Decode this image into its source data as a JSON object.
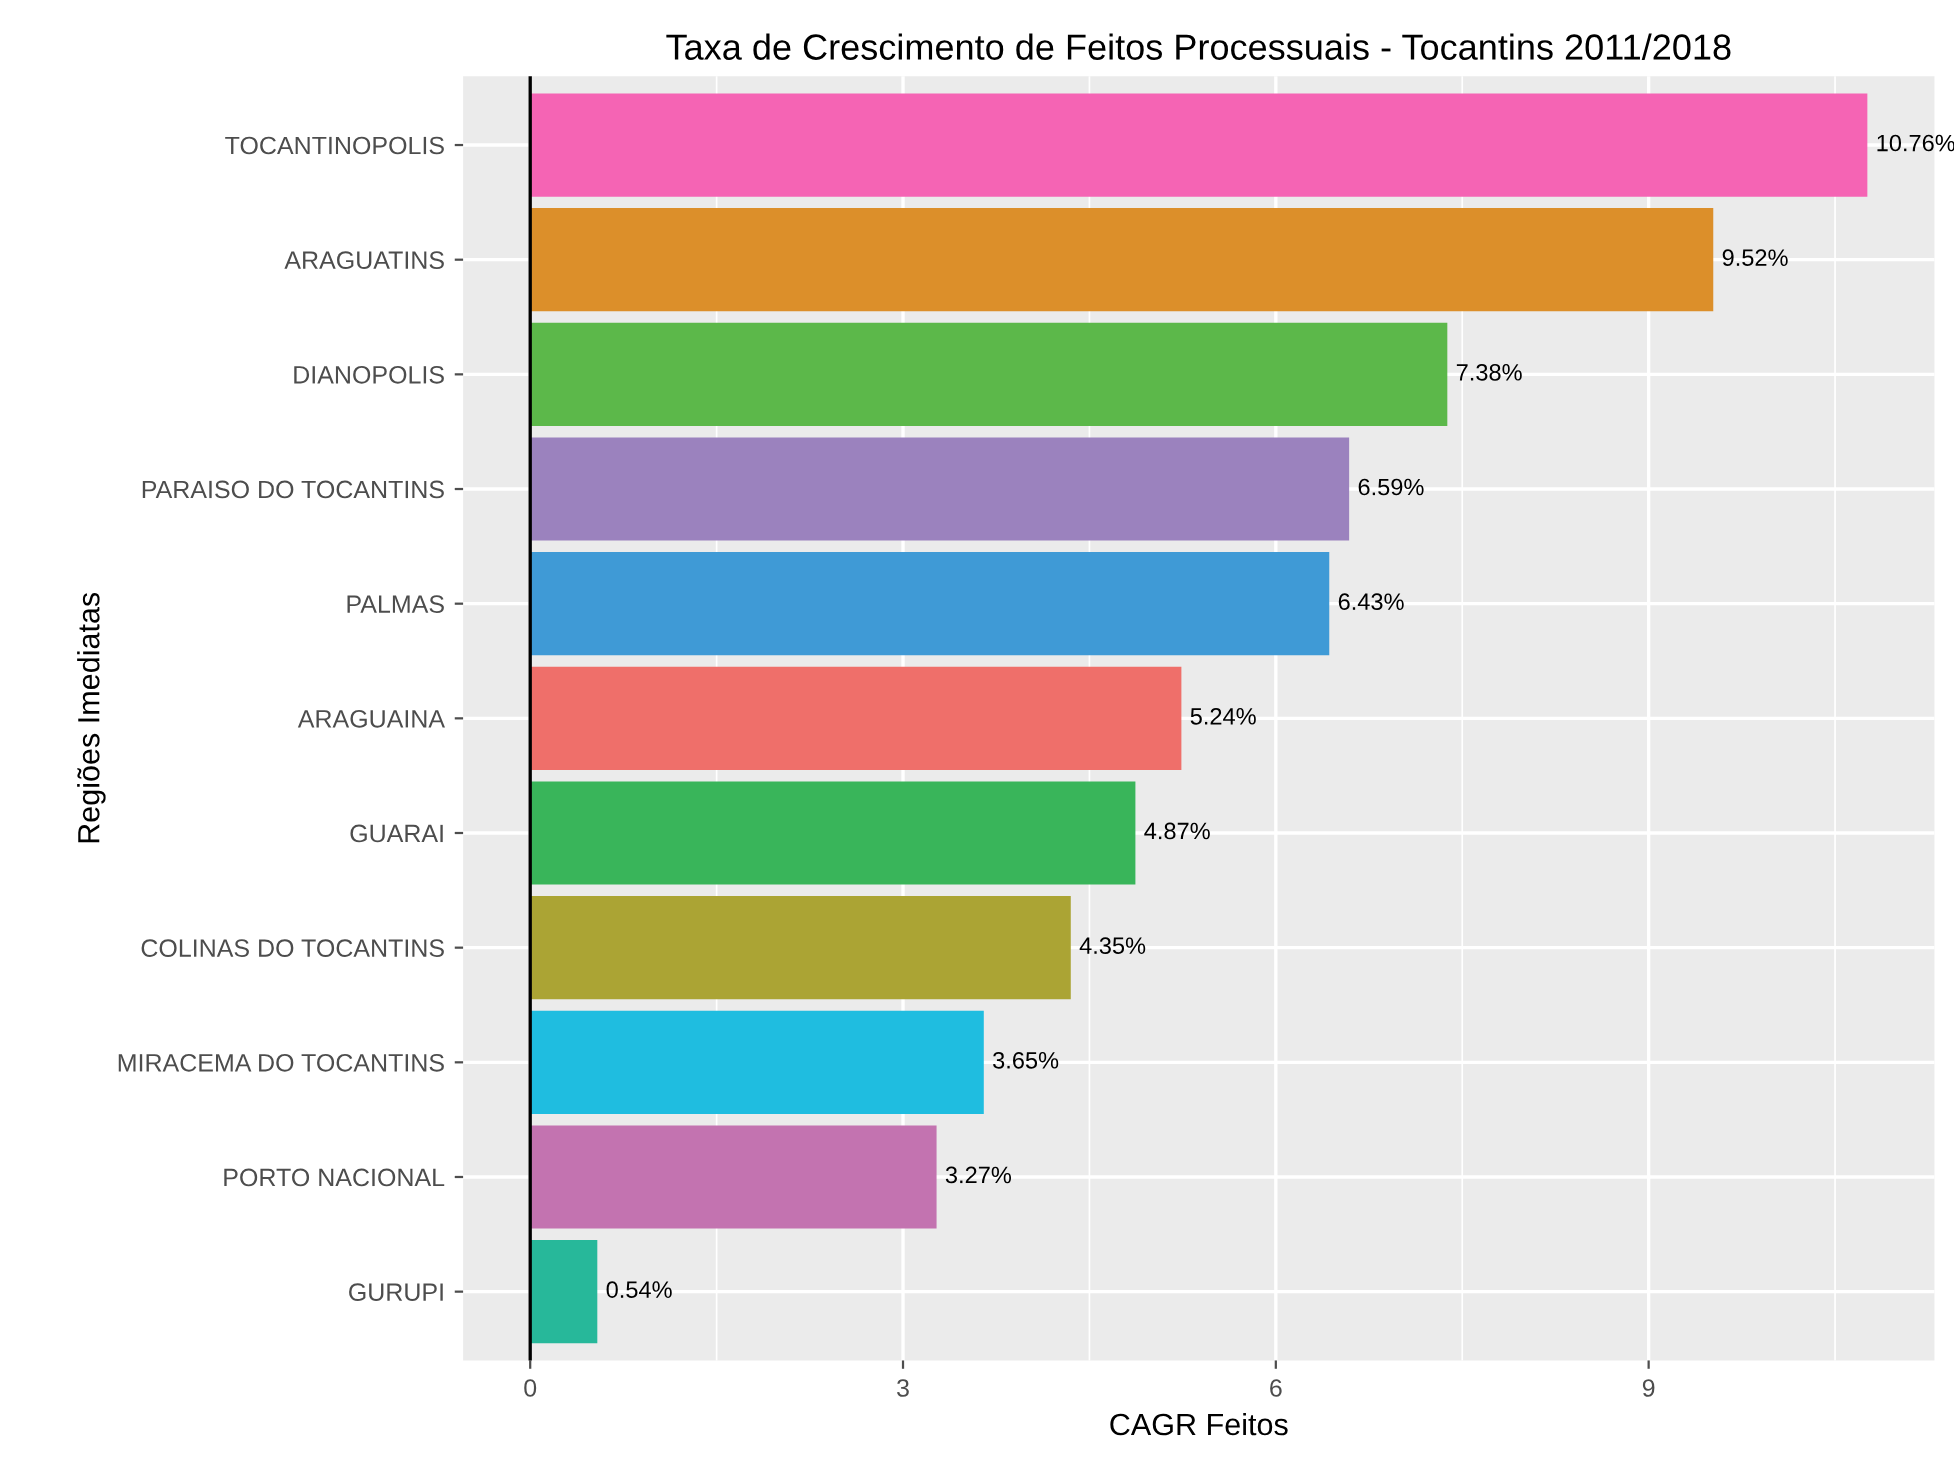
{
  "chart_data": {
    "type": "bar",
    "orientation": "horizontal",
    "title": "Taxa de Crescimento de Feitos Processuais - Tocantins 2011/2018",
    "xlabel": "CAGR Feitos",
    "ylabel": "Regiões Imediatas",
    "categories": [
      "TOCANTINOPOLIS",
      "ARAGUATINS",
      "DIANOPOLIS",
      "PARAISO DO TOCANTINS",
      "PALMAS",
      "ARAGUAINA",
      "GUARAI",
      "COLINAS DO TOCANTINS",
      "MIRACEMA DO TOCANTINS",
      "PORTO NACIONAL",
      "GURUPI"
    ],
    "values": [
      10.76,
      9.52,
      7.38,
      6.59,
      6.43,
      5.24,
      4.87,
      4.35,
      3.65,
      3.27,
      0.54
    ],
    "value_labels": [
      "10.76%",
      "9.52%",
      "7.38%",
      "6.59%",
      "6.43%",
      "5.24%",
      "4.87%",
      "4.35%",
      "3.65%",
      "3.27%",
      "0.54%"
    ],
    "colors": [
      "#f564b4",
      "#dc8f2a",
      "#5cb84a",
      "#9b82be",
      "#3f9ad6",
      "#ef6f6a",
      "#39b55a",
      "#aba434",
      "#1fbde0",
      "#c373b0",
      "#27b89a"
    ],
    "xlim": [
      -0.54,
      11.3
    ],
    "xticks": [
      0,
      3,
      6,
      9
    ],
    "grid": true,
    "ref_lines": [
      {
        "axis": "x",
        "value": 0,
        "color": "#000000"
      }
    ]
  }
}
